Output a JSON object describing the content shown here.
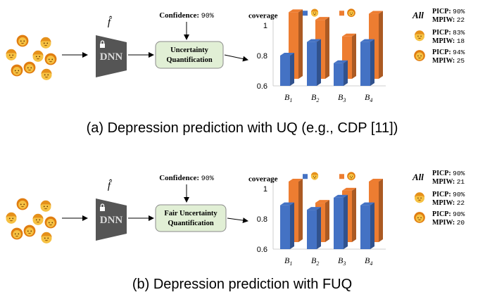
{
  "panels": [
    {
      "caption": "(a) Depression prediction with UQ (e.g., CDP [11])",
      "model_label": "DNN",
      "model_symbol": "f̂",
      "confidence_label": "Confidence:",
      "confidence_value": "90%",
      "uq_line1": "Uncertainty",
      "uq_line2": "Quantification",
      "uq_fill": "#e1efd5",
      "chart_data": {
        "type": "bar",
        "ylabel": "coverage",
        "ylim": [
          0.6,
          1.05
        ],
        "yticks": [
          "1",
          "0.8",
          "0.6"
        ],
        "categories": [
          "B1",
          "B2",
          "B3",
          "B4"
        ],
        "series": [
          {
            "values": [
              0.8,
              0.89,
              0.75,
              0.89
            ],
            "color": "#4472c4"
          },
          {
            "values": [
              1.04,
              0.99,
              0.88,
              1.03
            ],
            "color": "#ed7d31"
          }
        ]
      },
      "metrics": [
        {
          "label": "All",
          "picp": "90%",
          "mpiw": "22"
        },
        {
          "label": "",
          "picp": "83%",
          "mpiw": "18"
        },
        {
          "label": "",
          "picp": "94%",
          "mpiw": "25"
        }
      ]
    },
    {
      "caption": "(b) Depression prediction with FUQ",
      "model_label": "DNN",
      "model_symbol": "f̂",
      "confidence_label": "Confidence:",
      "confidence_value": "90%",
      "uq_line1": "Fair Uncertainty",
      "uq_line2": "Quantification",
      "uq_fill": "#e1efd5",
      "chart_data": {
        "type": "bar",
        "ylabel": "coverage",
        "ylim": [
          0.6,
          1.05
        ],
        "yticks": [
          "1",
          "0.8",
          "0.6"
        ],
        "categories": [
          "B1",
          "B2",
          "B3",
          "B4"
        ],
        "series": [
          {
            "values": [
              0.89,
              0.86,
              0.94,
              0.89
            ],
            "color": "#4472c4"
          },
          {
            "values": [
              1.0,
              0.86,
              0.94,
              1.0
            ],
            "color": "#ed7d31"
          }
        ]
      },
      "metrics": [
        {
          "label": "All",
          "picp": "90%",
          "mpiw": "21"
        },
        {
          "label": "",
          "picp": "90%",
          "mpiw": "22"
        },
        {
          "label": "",
          "picp": "90%",
          "mpiw": "20"
        }
      ]
    }
  ],
  "metric_keys": {
    "picp": "PICP:",
    "mpiw": "MPIW:"
  },
  "face_colors": {
    "skin": "#f6c143",
    "hair_male": "#e5901a",
    "hair_female": "#e07d10"
  }
}
